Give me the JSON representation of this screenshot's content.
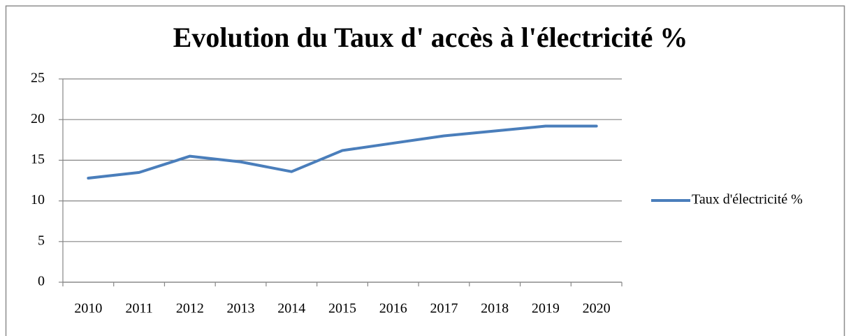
{
  "chart_data": {
    "type": "line",
    "title": "Evolution du Taux d' accès à l'électricité %",
    "categories": [
      "2010",
      "2011",
      "2012",
      "2013",
      "2014",
      "2015",
      "2016",
      "2017",
      "2018",
      "2019",
      "2020"
    ],
    "series": [
      {
        "name": "Taux d'électricité %",
        "color": "#4a7ebb",
        "values": [
          12.8,
          13.5,
          15.5,
          14.8,
          13.6,
          16.2,
          17.1,
          18.0,
          18.6,
          19.2,
          19.2
        ]
      }
    ],
    "ylim": [
      0,
      25
    ],
    "yticks": [
      0,
      5,
      10,
      15,
      20,
      25
    ],
    "grid": true,
    "legend": "right"
  }
}
